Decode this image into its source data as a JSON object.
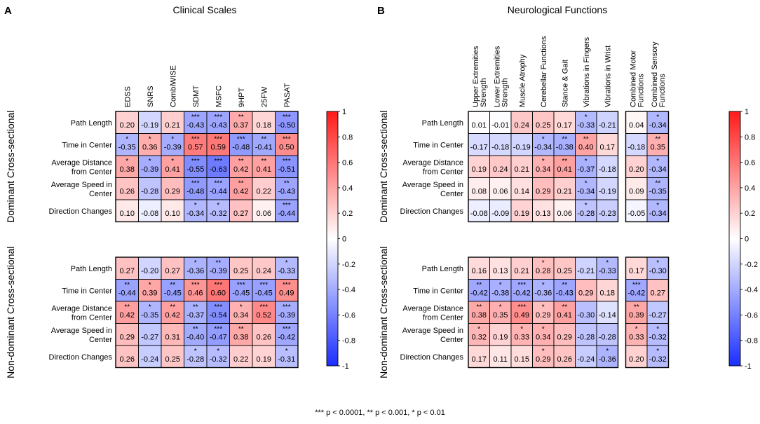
{
  "footnote": "*** p < 0.0001, ** p < 0.001, * p < 0.01",
  "colors": {
    "negative": "#1a2eff",
    "zero": "#ffffff",
    "positive": "#ff1a1a"
  },
  "chart_data": [
    {
      "type": "heatmap",
      "panel_label": "A",
      "title": "Clinical Scales",
      "columns": [
        "EDSS",
        "SNRS",
        "CombiWISE",
        "SDMT",
        "MSFC",
        "9HPT",
        "25FW",
        "PASAT"
      ],
      "column_labels": [
        [
          "EDSS"
        ],
        [
          "SNRS"
        ],
        [
          "CombiWISE"
        ],
        [
          "SDMT"
        ],
        [
          "MSFC"
        ],
        [
          "9HPT"
        ],
        [
          "25FW"
        ],
        [
          "PASAT"
        ]
      ],
      "column_groups": [
        8
      ],
      "groups": [
        {
          "name": "Dominant Cross-sectional",
          "rows": [
            {
              "label": [
                "Path Length"
              ],
              "values": [
                0.2,
                -0.19,
                0.21,
                -0.43,
                -0.43,
                0.37,
                0.18,
                -0.5
              ],
              "sig": [
                "",
                "",
                "",
                "***",
                "***",
                "**",
                "",
                "***"
              ]
            },
            {
              "label": [
                "Time in Center"
              ],
              "values": [
                -0.35,
                0.36,
                -0.39,
                0.57,
                0.59,
                -0.48,
                -0.41,
                0.5
              ],
              "sig": [
                "*",
                "*",
                "*",
                "***",
                "***",
                "***",
                "**",
                "***"
              ]
            },
            {
              "label": [
                "Average Distance",
                "from Center"
              ],
              "values": [
                0.38,
                -0.39,
                0.41,
                -0.55,
                -0.63,
                0.42,
                0.41,
                -0.51
              ],
              "sig": [
                "*",
                "*",
                "*",
                "***",
                "***",
                "**",
                "**",
                "***"
              ]
            },
            {
              "label": [
                "Average Speed in",
                "Center"
              ],
              "values": [
                0.26,
                -0.28,
                0.29,
                -0.48,
                -0.44,
                0.42,
                0.22,
                -0.43
              ],
              "sig": [
                "",
                "",
                "",
                "***",
                "***",
                "**",
                "",
                "**"
              ]
            },
            {
              "label": [
                "Direction Changes"
              ],
              "values": [
                0.1,
                -0.08,
                0.1,
                -0.34,
                -0.32,
                0.27,
                0.06,
                -0.44
              ],
              "sig": [
                "",
                "",
                "",
                "*",
                "*",
                "",
                "",
                "***"
              ]
            }
          ]
        },
        {
          "name": "Non-dominant Cross-sectional",
          "rows": [
            {
              "label": [
                "Path Length"
              ],
              "values": [
                0.27,
                -0.2,
                0.27,
                -0.36,
                -0.39,
                0.25,
                0.24,
                -0.33
              ],
              "sig": [
                "",
                "",
                "",
                "*",
                "**",
                "",
                "",
                "*"
              ]
            },
            {
              "label": [
                "Time in Center"
              ],
              "values": [
                -0.44,
                0.39,
                -0.45,
                0.46,
                0.6,
                -0.45,
                -0.45,
                0.49
              ],
              "sig": [
                "**",
                "*",
                "**",
                "***",
                "***",
                "***",
                "***",
                "***"
              ]
            },
            {
              "label": [
                "Average Distance",
                "from Center"
              ],
              "values": [
                0.42,
                -0.35,
                0.42,
                -0.37,
                -0.54,
                0.34,
                0.52,
                -0.39
              ],
              "sig": [
                "**",
                "*",
                "**",
                "**",
                "***",
                "*",
                "***",
                "***"
              ]
            },
            {
              "label": [
                "Average Speed in",
                "Center"
              ],
              "values": [
                0.29,
                -0.27,
                0.31,
                -0.4,
                -0.47,
                0.38,
                0.26,
                -0.42
              ],
              "sig": [
                "",
                "",
                "",
                "**",
                "***",
                "**",
                "",
                "***"
              ]
            },
            {
              "label": [
                "Direction Changes"
              ],
              "values": [
                0.26,
                -0.24,
                0.25,
                -0.28,
                -0.32,
                0.22,
                0.19,
                -0.31
              ],
              "sig": [
                "",
                "",
                "",
                "*",
                "*",
                "",
                "",
                "*"
              ]
            }
          ]
        }
      ],
      "colorbar": {
        "min": -1,
        "max": 1,
        "ticks": [
          "1",
          "0.8",
          "0.6",
          "0.4",
          "0.2",
          "0",
          "-0.2",
          "-0.4",
          "-0.6",
          "-0.8",
          "-1"
        ]
      }
    },
    {
      "type": "heatmap",
      "panel_label": "B",
      "title": "Neurological Functions",
      "columns": [
        "Upper Extremities Strength",
        "Lower Extremities Strength",
        "Muscle Atrophy",
        "Cerebellar Functions",
        "Stance & Gait",
        "Vibrations in Fingers",
        "Vibrations in Wrist",
        "Combined Motor Functions",
        "Combined Sensory Functions"
      ],
      "column_labels": [
        [
          "Upper Extremities",
          "Strength"
        ],
        [
          "Lower Extremities",
          "Strength"
        ],
        [
          "Muscle Atrophy"
        ],
        [
          "Cerebellar Functions"
        ],
        [
          "Stance & Gait"
        ],
        [
          "Vibrations in Fingers"
        ],
        [
          "Vibrations in Wrist"
        ],
        [
          "Combined Motor",
          "Functions"
        ],
        [
          "Combined Sensory",
          "Functions"
        ]
      ],
      "column_groups": [
        7,
        2
      ],
      "groups": [
        {
          "name": "Dominant Cross-sectional",
          "rows": [
            {
              "label": [
                "Path Length"
              ],
              "values": [
                0.01,
                -0.01,
                0.24,
                0.25,
                0.17,
                -0.33,
                -0.21,
                0.04,
                -0.34
              ],
              "sig": [
                "",
                "",
                "",
                "",
                "",
                "*",
                "",
                "",
                "*"
              ]
            },
            {
              "label": [
                "Time in Center"
              ],
              "values": [
                -0.17,
                -0.18,
                -0.19,
                -0.34,
                -0.38,
                0.4,
                0.17,
                -0.18,
                0.35
              ],
              "sig": [
                "",
                "",
                "",
                "*",
                "**",
                "**",
                "",
                "",
                "**"
              ]
            },
            {
              "label": [
                "Average Distance",
                "from Center"
              ],
              "values": [
                0.19,
                0.24,
                0.21,
                0.34,
                0.41,
                -0.37,
                -0.18,
                0.2,
                -0.34
              ],
              "sig": [
                "",
                "",
                "",
                "*",
                "**",
                "*",
                "",
                "",
                "*"
              ]
            },
            {
              "label": [
                "Average Speed in",
                "Center"
              ],
              "values": [
                0.08,
                0.06,
                0.14,
                0.29,
                0.21,
                -0.34,
                -0.19,
                0.09,
                -0.35
              ],
              "sig": [
                "",
                "",
                "",
                "",
                "",
                "*",
                "",
                "",
                "**"
              ]
            },
            {
              "label": [
                "Direction Changes"
              ],
              "values": [
                -0.08,
                -0.09,
                0.19,
                0.13,
                0.06,
                -0.28,
                -0.23,
                -0.05,
                -0.34
              ],
              "sig": [
                "",
                "",
                "",
                "",
                "",
                "*",
                "",
                "",
                "*"
              ]
            }
          ]
        },
        {
          "name": "Non-dominant Cross-sectional",
          "rows": [
            {
              "label": [
                "Path Length"
              ],
              "values": [
                0.16,
                0.13,
                0.21,
                0.28,
                0.25,
                -0.21,
                -0.33,
                0.17,
                -0.3
              ],
              "sig": [
                "",
                "",
                "",
                "*",
                "",
                "",
                "*",
                "",
                "*"
              ]
            },
            {
              "label": [
                "Time in Center"
              ],
              "values": [
                -0.42,
                -0.38,
                -0.42,
                -0.36,
                -0.43,
                0.29,
                0.18,
                -0.42,
                0.27
              ],
              "sig": [
                "**",
                "*",
                "***",
                "*",
                "**",
                "",
                "",
                "***",
                ""
              ]
            },
            {
              "label": [
                "Average Distance",
                "from Center"
              ],
              "values": [
                0.38,
                0.35,
                0.49,
                0.29,
                0.41,
                -0.3,
                -0.14,
                0.39,
                -0.27
              ],
              "sig": [
                "**",
                "*",
                "***",
                "*",
                "**",
                "",
                "",
                "**",
                ""
              ]
            },
            {
              "label": [
                "Average Speed in",
                "Center"
              ],
              "values": [
                0.32,
                0.19,
                0.33,
                0.34,
                0.29,
                -0.28,
                -0.28,
                0.33,
                -0.32
              ],
              "sig": [
                "*",
                "",
                "*",
                "*",
                "",
                "",
                "",
                "*",
                "*"
              ]
            },
            {
              "label": [
                "Direction Changes"
              ],
              "values": [
                0.17,
                0.11,
                0.15,
                0.29,
                0.26,
                -0.24,
                -0.36,
                0.2,
                -0.32
              ],
              "sig": [
                "",
                "",
                "",
                "*",
                "",
                "",
                "*",
                "",
                "*"
              ]
            }
          ]
        }
      ],
      "colorbar": {
        "min": -1,
        "max": 1,
        "ticks": [
          "1",
          "0.8",
          "0.6",
          "0.4",
          "0.2",
          "0",
          "-0.2",
          "-0.4",
          "-0.6",
          "-0.8",
          "-1"
        ]
      }
    }
  ]
}
